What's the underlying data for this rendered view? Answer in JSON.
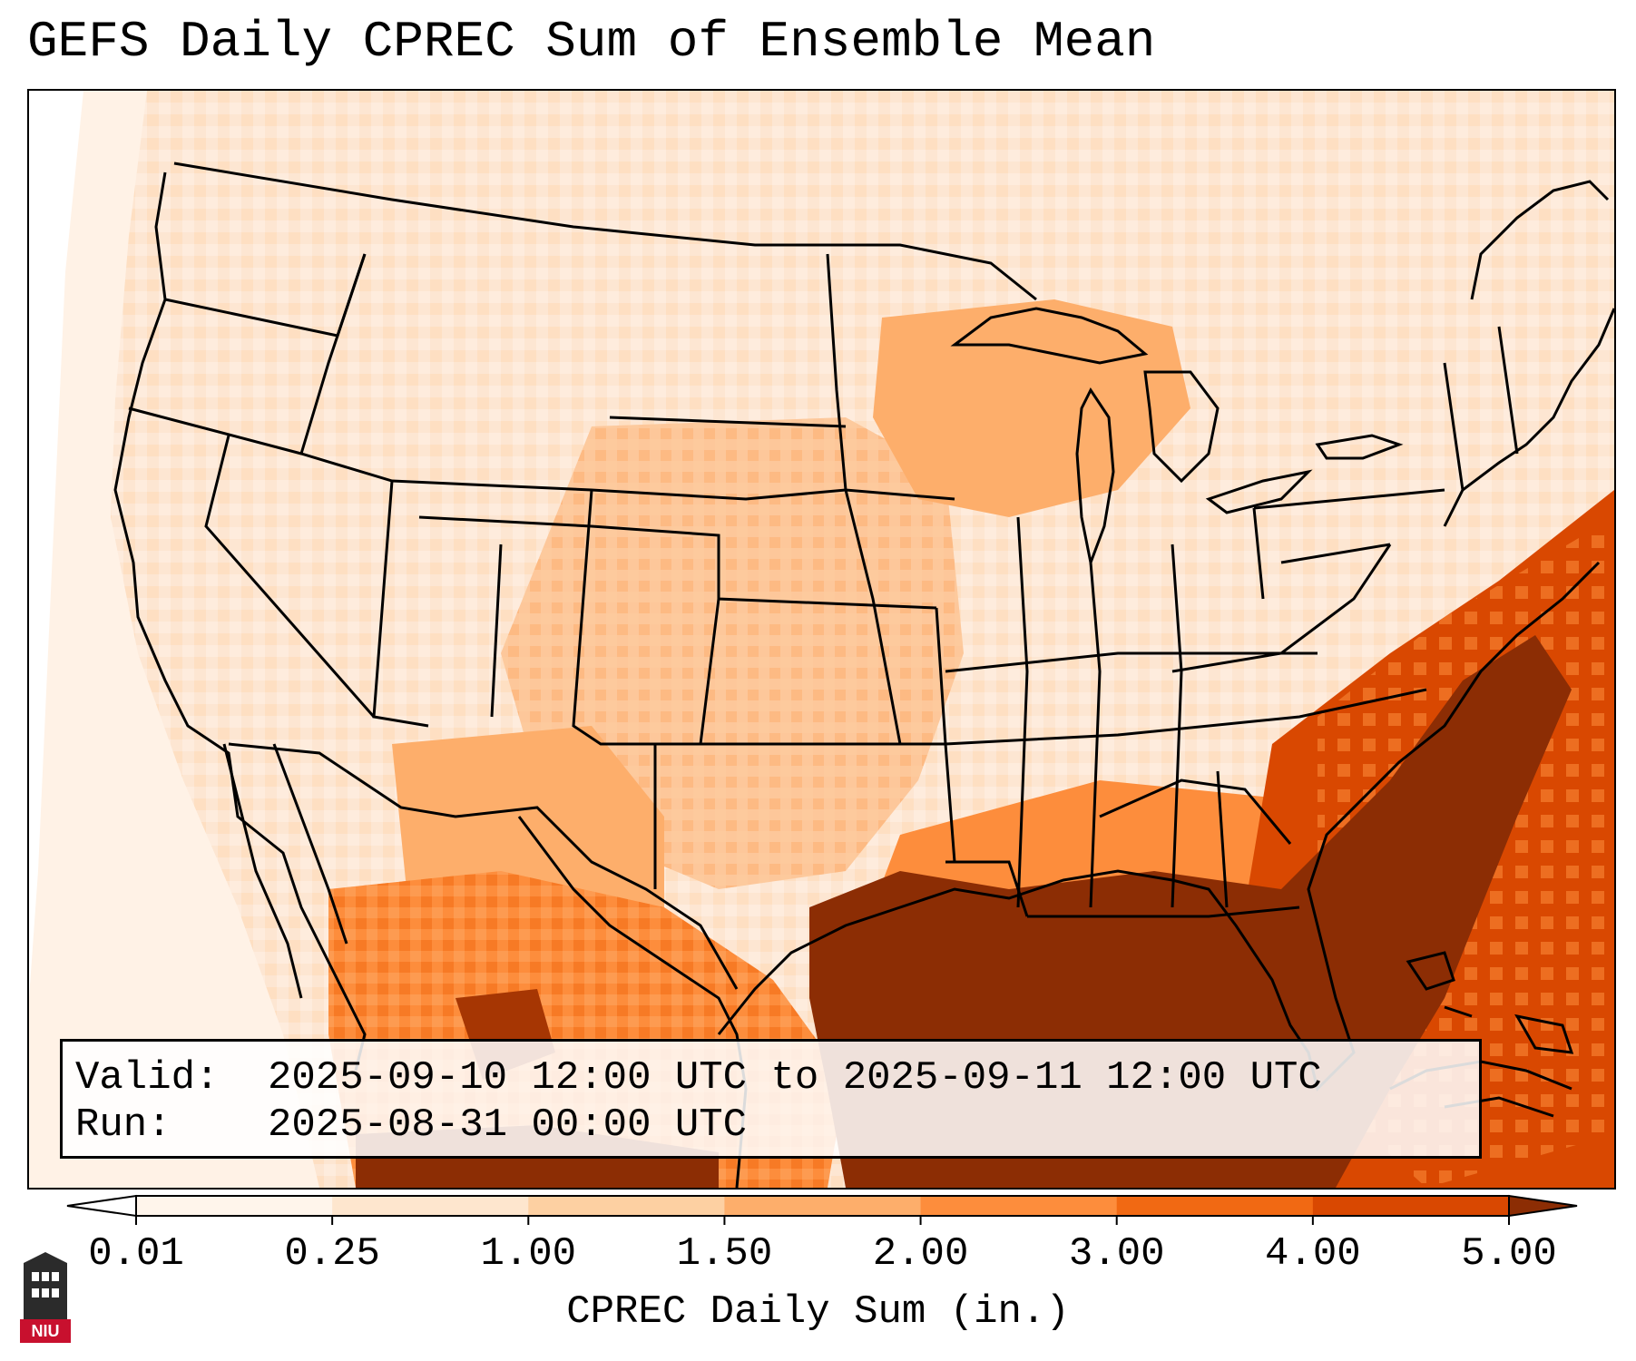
{
  "title": "GEFS Daily CPREC Sum of Ensemble Mean",
  "info": {
    "valid_label": "Valid:",
    "valid_value": "2025-09-10 12:00 UTC to 2025-09-11 12:00 UTC",
    "run_label": "Run:",
    "run_value": "2025-08-31 00:00 UTC"
  },
  "colorbar": {
    "label": "CPREC Daily Sum (in.)",
    "ticks": [
      "0.01",
      "0.25",
      "1.00",
      "1.50",
      "2.00",
      "3.00",
      "4.00",
      "5.00"
    ],
    "colors": [
      "#fff5eb",
      "#fee6ce",
      "#fdd0a2",
      "#fdae6b",
      "#fd8d3c",
      "#f16913",
      "#d94801",
      "#a63603"
    ],
    "under_color": "#ffffff",
    "over_color": "#8c2d04"
  },
  "logo": {
    "text": "NIU",
    "colors": {
      "body": "#2b2b2b",
      "banner": "#c8102e"
    }
  }
}
